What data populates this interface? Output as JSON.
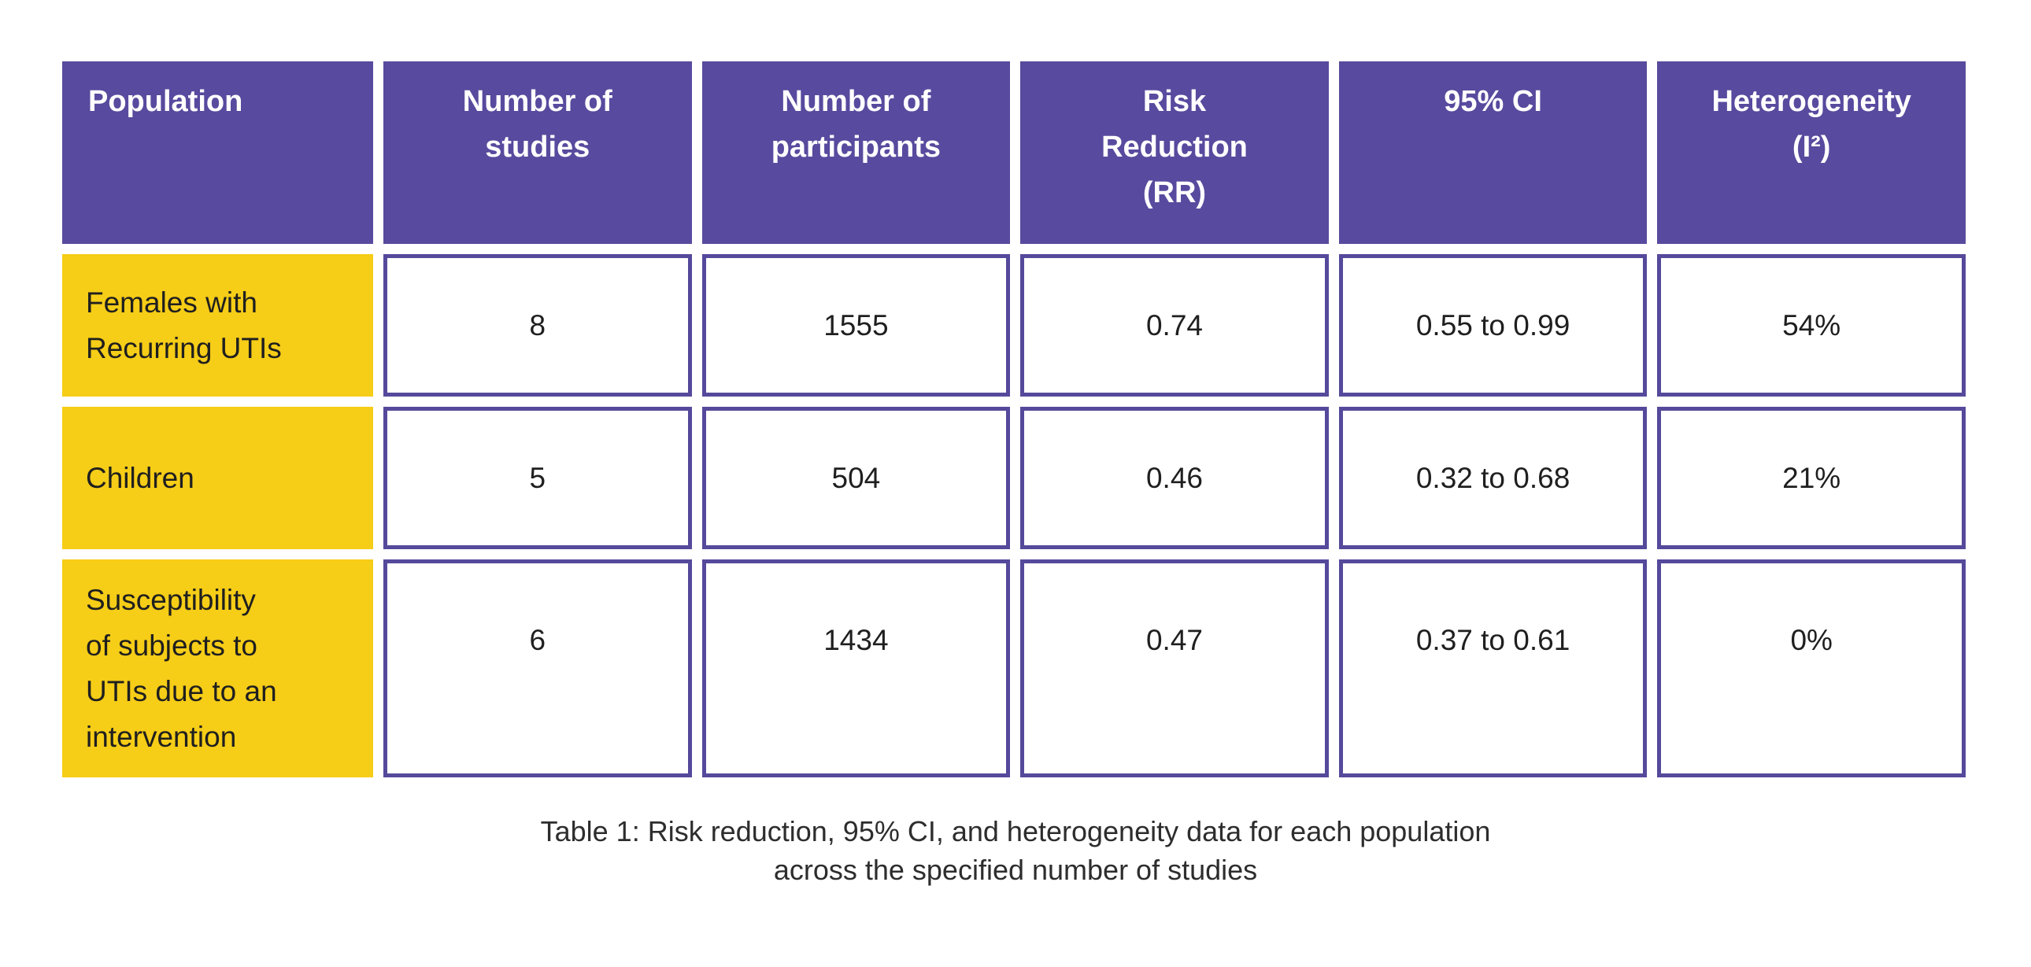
{
  "colors": {
    "page_bg": "#ffffff",
    "header_bg": "#584a9e",
    "header_text": "#ffffff",
    "label_bg": "#f6cd17",
    "label_text": "#1f1f1f",
    "cell_bg": "#ffffff",
    "cell_border": "#55499b",
    "cell_text": "#1f1f1f",
    "caption_text": "#2d2d2d"
  },
  "table": {
    "headers": [
      {
        "lines": [
          "Population"
        ]
      },
      {
        "lines": [
          "Number of",
          "studies"
        ]
      },
      {
        "lines": [
          "Number of",
          "participants"
        ]
      },
      {
        "lines": [
          "Risk",
          "Reduction",
          "(RR)"
        ]
      },
      {
        "lines": [
          "95% CI"
        ]
      },
      {
        "lines": [
          "Heterogeneity",
          "(I²)"
        ]
      }
    ],
    "rows": [
      {
        "population_lines": [
          "Females with",
          "Recurring UTIs"
        ],
        "values": [
          "8",
          "1555",
          "0.74",
          "0.55 to 0.99",
          "54%"
        ]
      },
      {
        "population_lines": [
          "Children"
        ],
        "values": [
          "5",
          "504",
          "0.46",
          "0.32 to 0.68",
          "21%"
        ]
      },
      {
        "population_lines": [
          "Susceptibility",
          "of subjects to",
          "UTIs due to an",
          "intervention"
        ],
        "values": [
          "6",
          "1434",
          "0.47",
          "0.37 to 0.61",
          "0%"
        ]
      }
    ],
    "caption_lines": [
      "Table 1: Risk reduction, 95% CI, and heterogeneity data for each population",
      "across the specified number of studies"
    ]
  },
  "chart_data": {
    "type": "table",
    "title": "Table 1: Risk reduction, 95% CI, and heterogeneity data for each population across the specified number of studies",
    "columns": [
      "Population",
      "Number of studies",
      "Number of participants",
      "Risk Reduction (RR)",
      "95% CI",
      "Heterogeneity (I²)"
    ],
    "rows": [
      [
        "Females with Recurring UTIs",
        8,
        1555,
        0.74,
        "0.55 to 0.99",
        "54%"
      ],
      [
        "Children",
        5,
        504,
        0.46,
        "0.32 to 0.68",
        "21%"
      ],
      [
        "Susceptibility of subjects to UTIs due to an intervention",
        6,
        1434,
        0.47,
        "0.37 to 0.61",
        "0%"
      ]
    ]
  }
}
